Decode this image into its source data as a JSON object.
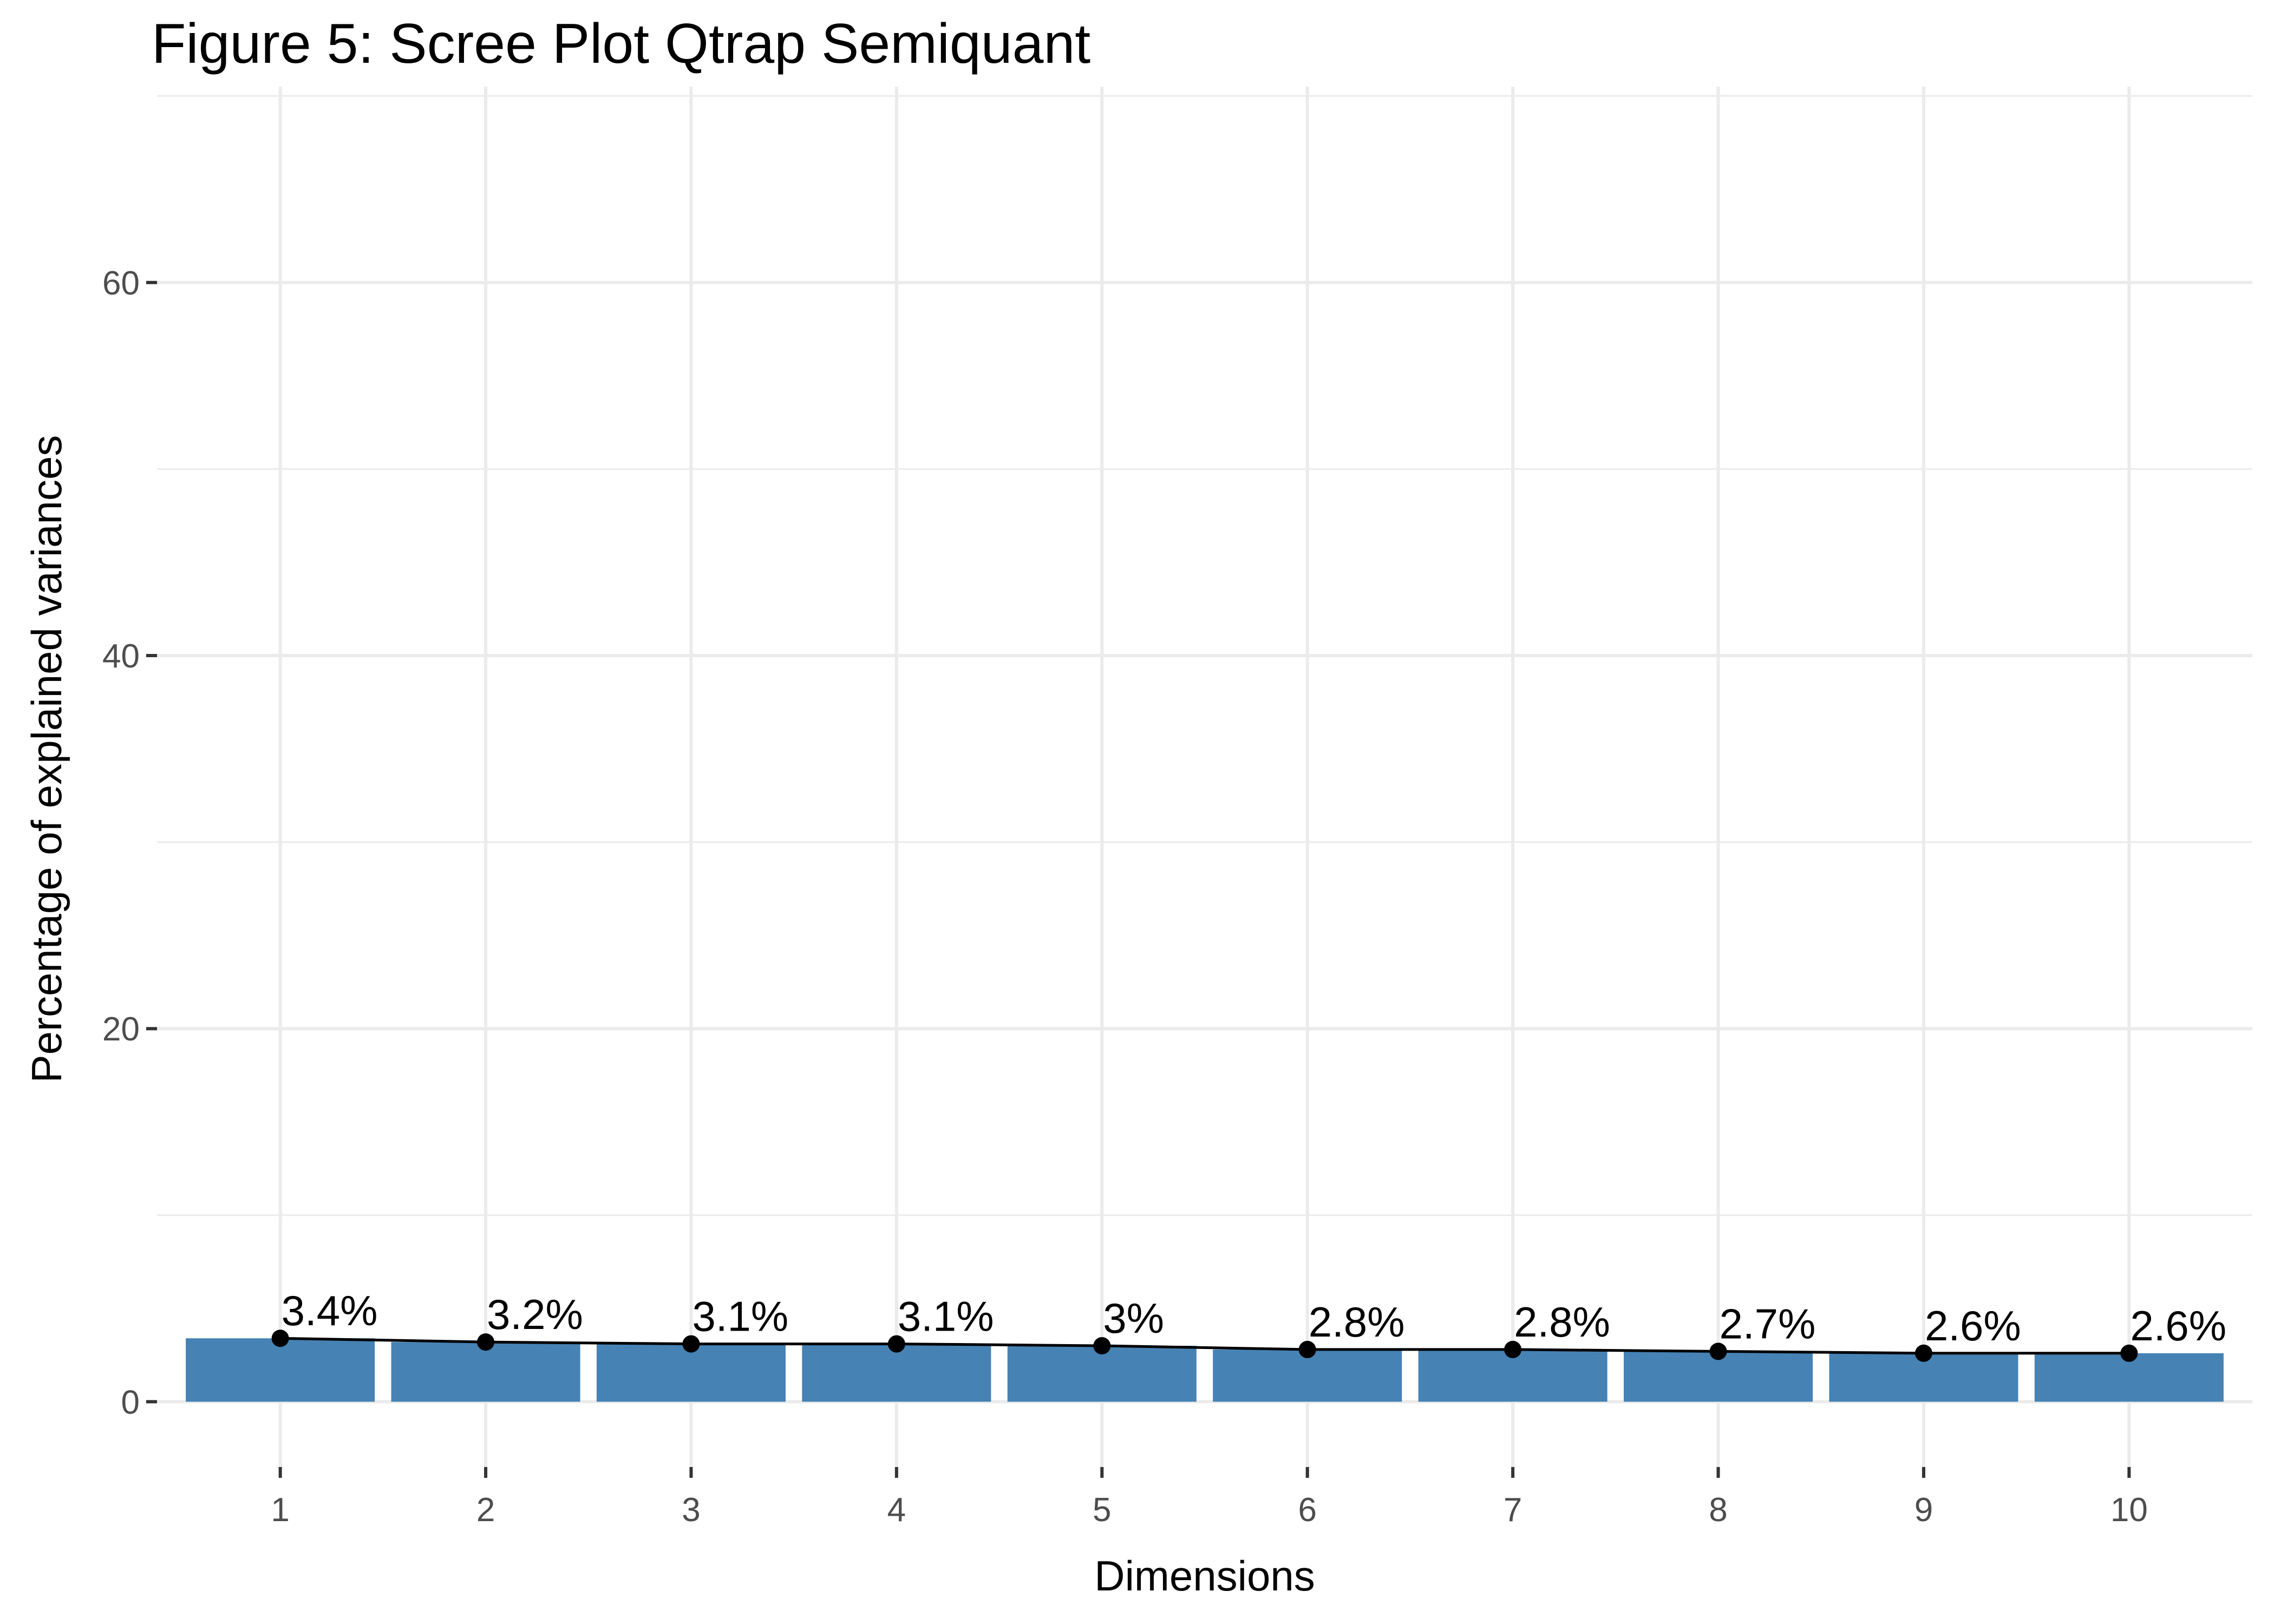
{
  "title": "Figure 5: Scree Plot  Qtrap Semiquant",
  "chart_data": {
    "type": "bar",
    "title": "Figure 5: Scree Plot  Qtrap Semiquant",
    "xlabel": "Dimensions",
    "ylabel": "Percentage of explained variances",
    "categories": [
      "1",
      "2",
      "3",
      "4",
      "5",
      "6",
      "7",
      "8",
      "9",
      "10"
    ],
    "values": [
      3.4,
      3.2,
      3.1,
      3.1,
      3.0,
      2.8,
      2.8,
      2.7,
      2.6,
      2.6
    ],
    "labels": [
      "3.4%",
      "3.2%",
      "3.1%",
      "3.1%",
      "3%",
      "2.8%",
      "2.8%",
      "2.7%",
      "2.6%",
      "2.6%"
    ],
    "ylim": [
      -3.5,
      70.5
    ],
    "yticks": [
      0,
      20,
      40,
      60
    ],
    "yticks_labels": [
      "0",
      "20",
      "40",
      "60"
    ],
    "grid": true,
    "line_overlay": true,
    "colors": {
      "bar": "#4682B4",
      "line": "#000000",
      "grid": "#EBEBEB",
      "tick_text": "#4D4D4D",
      "background": "#FFFFFF"
    }
  }
}
